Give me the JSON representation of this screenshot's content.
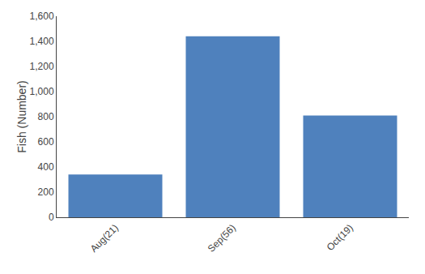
{
  "chart_data": {
    "type": "bar",
    "categories": [
      "Aug(21)",
      "Sep(56)",
      "Oct(19)"
    ],
    "values": [
      340,
      1440,
      810
    ],
    "color": "#4F81BD",
    "ylabel": "Fish (Number)",
    "ylim": [
      0,
      1600
    ],
    "yticks": [
      0,
      200,
      400,
      600,
      800,
      {
        "value": 1000,
        "label": "1,000"
      },
      {
        "value": 1200,
        "label": "1,200"
      },
      {
        "value": 1400,
        "label": "1,400"
      },
      {
        "value": 1600,
        "label": "1,600"
      }
    ],
    "grid": false
  }
}
